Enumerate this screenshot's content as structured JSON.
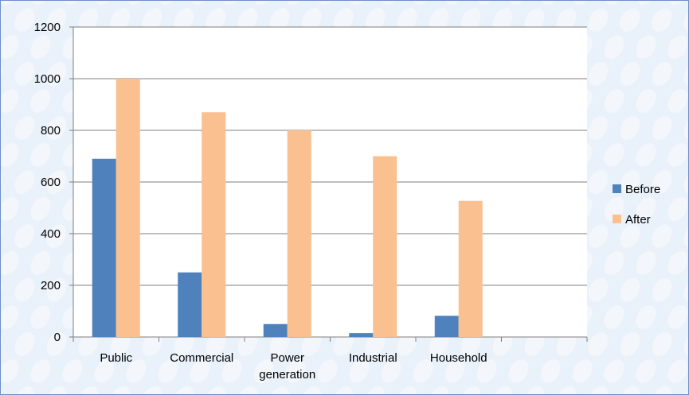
{
  "colors": {
    "background": "#e9f1fa",
    "border": "#6b8fc9",
    "before": "#4f81bd",
    "after": "#fac08f",
    "gridline": "#7f7f7f"
  },
  "chart_data": {
    "type": "bar",
    "title": "",
    "xlabel": "",
    "ylabel": "",
    "categories": [
      [
        "Public"
      ],
      [
        "Commercial"
      ],
      [
        "Power",
        "generation"
      ],
      [
        "Industrial"
      ],
      [
        "Household"
      ],
      [
        ""
      ]
    ],
    "series": [
      {
        "name": "Before",
        "values": [
          690,
          250,
          50,
          15,
          82,
          null
        ]
      },
      {
        "name": "After",
        "values": [
          1000,
          870,
          800,
          700,
          527,
          null
        ]
      }
    ],
    "ylim": [
      0,
      1200
    ],
    "yticks": [
      0,
      200,
      400,
      600,
      800,
      1000,
      1200
    ],
    "grid": true,
    "legend_position": "right"
  }
}
